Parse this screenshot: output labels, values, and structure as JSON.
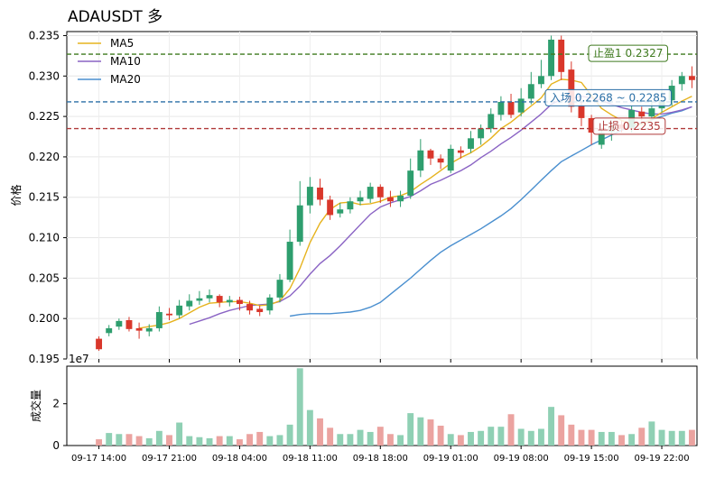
{
  "chart_data": {
    "type": "candlestick",
    "title": "ADAUSDT 多",
    "price_panel": {
      "ylabel": "价格",
      "ylim": [
        0.195,
        0.2355
      ],
      "yticks": [
        "0.195",
        "0.200",
        "0.205",
        "0.210",
        "0.215",
        "0.220",
        "0.225",
        "0.230",
        "0.235"
      ],
      "grid": true
    },
    "volume_panel": {
      "ylabel": "成交量",
      "offset_label": "1e7",
      "ylim": [
        0,
        3.8
      ],
      "yticks": [
        "0",
        "2"
      ]
    },
    "xticks": [
      "09-17 14:00",
      "09-17 21:00",
      "09-18 04:00",
      "09-18 11:00",
      "09-18 18:00",
      "09-19 01:00",
      "09-19 08:00",
      "09-19 15:00",
      "09-19 22:00"
    ],
    "xtick_index": [
      0,
      7,
      14,
      21,
      28,
      35,
      42,
      49,
      56
    ],
    "legend": {
      "placement": "top-left",
      "entries": [
        "MA5",
        "MA10",
        "MA20"
      ]
    },
    "colors": {
      "up": "#2e9e6e",
      "down": "#d9372b",
      "ma5": "#e6b31e",
      "ma10": "#8a63c4",
      "ma20": "#4a8fcf"
    },
    "levels": [
      {
        "name": "take_profit",
        "label": "止盈1 0.2327",
        "value": 0.2327,
        "color": "#3f7a1f"
      },
      {
        "name": "entry_high",
        "label": "入场 0.2268 ~ 0.2285",
        "value": 0.2268,
        "color": "#2a6fa6"
      },
      {
        "name": "stop_loss",
        "label": "止损 0.2235",
        "value": 0.2235,
        "color": "#b03a3a"
      }
    ],
    "candles": [
      [
        0.1975,
        0.1962,
        0.1978,
        0.196
      ],
      [
        0.1982,
        0.1988,
        0.1992,
        0.1978
      ],
      [
        0.199,
        0.1997,
        0.2,
        0.1986
      ],
      [
        0.1998,
        0.1987,
        0.2002,
        0.1984
      ],
      [
        0.1988,
        0.1985,
        0.1995,
        0.1975
      ],
      [
        0.1984,
        0.1988,
        0.1993,
        0.1978
      ],
      [
        0.1988,
        0.2008,
        0.2015,
        0.1984
      ],
      [
        0.2006,
        0.2004,
        0.2013,
        0.1998
      ],
      [
        0.2004,
        0.2016,
        0.2023,
        0.2
      ],
      [
        0.2015,
        0.2022,
        0.203,
        0.201
      ],
      [
        0.2022,
        0.2025,
        0.2034,
        0.2017
      ],
      [
        0.2025,
        0.2029,
        0.2036,
        0.202
      ],
      [
        0.2028,
        0.202,
        0.203,
        0.2014
      ],
      [
        0.202,
        0.2023,
        0.2028,
        0.2015
      ],
      [
        0.2023,
        0.2018,
        0.2027,
        0.201
      ],
      [
        0.2018,
        0.201,
        0.2022,
        0.2005
      ],
      [
        0.2012,
        0.2008,
        0.2016,
        0.2003
      ],
      [
        0.201,
        0.2026,
        0.203,
        0.2005
      ],
      [
        0.2026,
        0.2048,
        0.2055,
        0.202
      ],
      [
        0.2048,
        0.2095,
        0.211,
        0.2045
      ],
      [
        0.2095,
        0.214,
        0.217,
        0.209
      ],
      [
        0.214,
        0.2163,
        0.2175,
        0.213
      ],
      [
        0.2162,
        0.2147,
        0.2173,
        0.214
      ],
      [
        0.2147,
        0.2128,
        0.2152,
        0.2122
      ],
      [
        0.213,
        0.2135,
        0.2143,
        0.2125
      ],
      [
        0.2135,
        0.2145,
        0.215,
        0.213
      ],
      [
        0.2145,
        0.215,
        0.2158,
        0.214
      ],
      [
        0.2148,
        0.2163,
        0.2168,
        0.2143
      ],
      [
        0.2163,
        0.215,
        0.2166,
        0.2143
      ],
      [
        0.215,
        0.2145,
        0.2158,
        0.2138
      ],
      [
        0.2145,
        0.2152,
        0.2158,
        0.2138
      ],
      [
        0.2152,
        0.2183,
        0.2198,
        0.2148
      ],
      [
        0.2183,
        0.2208,
        0.2222,
        0.2175
      ],
      [
        0.2208,
        0.2198,
        0.221,
        0.219
      ],
      [
        0.2198,
        0.2193,
        0.2203,
        0.2185
      ],
      [
        0.2183,
        0.221,
        0.2215,
        0.218
      ],
      [
        0.2208,
        0.2205,
        0.2213,
        0.2198
      ],
      [
        0.221,
        0.2223,
        0.2232,
        0.2205
      ],
      [
        0.2223,
        0.2235,
        0.224,
        0.2215
      ],
      [
        0.2235,
        0.2253,
        0.226,
        0.223
      ],
      [
        0.2252,
        0.2268,
        0.2275,
        0.2245
      ],
      [
        0.2268,
        0.2252,
        0.2278,
        0.2248
      ],
      [
        0.2255,
        0.2272,
        0.2285,
        0.225
      ],
      [
        0.2272,
        0.229,
        0.2305,
        0.2265
      ],
      [
        0.229,
        0.23,
        0.232,
        0.2285
      ],
      [
        0.23,
        0.2345,
        0.235,
        0.2295
      ],
      [
        0.2345,
        0.2305,
        0.235,
        0.2295
      ],
      [
        0.2308,
        0.2262,
        0.2318,
        0.2255
      ],
      [
        0.2263,
        0.2248,
        0.2268,
        0.2238
      ],
      [
        0.2248,
        0.223,
        0.2252,
        0.2215
      ],
      [
        0.2215,
        0.223,
        0.2235,
        0.221
      ],
      [
        0.2231,
        0.2238,
        0.2245,
        0.222
      ],
      [
        0.224,
        0.2235,
        0.2245,
        0.223
      ],
      [
        0.2236,
        0.2258,
        0.2263,
        0.223
      ],
      [
        0.2256,
        0.225,
        0.2262,
        0.2245
      ],
      [
        0.225,
        0.226,
        0.227,
        0.2245
      ],
      [
        0.226,
        0.227,
        0.2283,
        0.2255
      ],
      [
        0.227,
        0.2288,
        0.2295,
        0.2263
      ],
      [
        0.229,
        0.23,
        0.2305,
        0.2282
      ],
      [
        0.23,
        0.2295,
        0.2312,
        0.2285
      ]
    ],
    "ma5": [
      null,
      null,
      null,
      null,
      0.1988,
      0.199,
      0.1992,
      0.1995,
      0.2,
      0.2007,
      0.2014,
      0.2019,
      0.202,
      0.2021,
      0.2021,
      0.2019,
      0.2016,
      0.2017,
      0.2022,
      0.2037,
      0.2062,
      0.2094,
      0.2118,
      0.2135,
      0.2143,
      0.2144,
      0.2141,
      0.2142,
      0.2145,
      0.215,
      0.2152,
      0.2157,
      0.2166,
      0.2174,
      0.2183,
      0.2192,
      0.2199,
      0.2205,
      0.2213,
      0.2223,
      0.2235,
      0.2243,
      0.2253,
      0.2263,
      0.2273,
      0.229,
      0.2296,
      0.2295,
      0.2292,
      0.2276,
      0.226,
      0.2252,
      0.2245,
      0.2241,
      0.224,
      0.2247,
      0.2255,
      0.2262,
      0.2269,
      0.2275
    ],
    "ma10": [
      null,
      null,
      null,
      null,
      null,
      null,
      null,
      null,
      null,
      0.1993,
      0.1997,
      0.2001,
      0.2006,
      0.201,
      0.2013,
      0.2016,
      0.2017,
      0.2018,
      0.2021,
      0.2028,
      0.204,
      0.2055,
      0.2068,
      0.2078,
      0.209,
      0.2103,
      0.2116,
      0.2129,
      0.2138,
      0.2143,
      0.2147,
      0.2151,
      0.2158,
      0.2166,
      0.2171,
      0.2177,
      0.2183,
      0.219,
      0.2199,
      0.2207,
      0.2216,
      0.2224,
      0.2233,
      0.2243,
      0.2253,
      0.2265,
      0.2271,
      0.2272,
      0.2275,
      0.2273,
      0.227,
      0.2265,
      0.2261,
      0.2258,
      0.2255,
      0.2253,
      0.2253,
      0.2255,
      0.2258,
      0.2262
    ],
    "ma20": [
      null,
      null,
      null,
      null,
      null,
      null,
      null,
      null,
      null,
      null,
      null,
      null,
      null,
      null,
      null,
      null,
      null,
      null,
      null,
      0.2003,
      0.2005,
      0.2006,
      0.2006,
      0.2006,
      0.2007,
      0.2008,
      0.201,
      0.2014,
      0.202,
      0.203,
      0.204,
      0.205,
      0.2061,
      0.2072,
      0.2082,
      0.209,
      0.2097,
      0.2104,
      0.2111,
      0.2119,
      0.2127,
      0.2136,
      0.2147,
      0.2159,
      0.2171,
      0.2183,
      0.2194,
      0.2201,
      0.2208,
      0.2215,
      0.2221,
      0.2227,
      0.2233,
      0.2238,
      0.2242,
      0.2246,
      0.225,
      0.2254,
      0.2257,
      0.2262
    ],
    "volumes": [
      0.3,
      0.6,
      0.55,
      0.55,
      0.45,
      0.35,
      0.7,
      0.5,
      1.1,
      0.45,
      0.4,
      0.35,
      0.45,
      0.45,
      0.3,
      0.55,
      0.65,
      0.45,
      0.5,
      1.0,
      3.7,
      1.7,
      1.3,
      0.85,
      0.55,
      0.55,
      0.75,
      0.65,
      0.9,
      0.55,
      0.5,
      1.55,
      1.35,
      1.25,
      0.95,
      0.55,
      0.5,
      0.65,
      0.7,
      0.9,
      0.9,
      1.5,
      0.8,
      0.7,
      0.8,
      1.85,
      1.45,
      1.0,
      0.75,
      0.75,
      0.65,
      0.65,
      0.5,
      0.55,
      0.85,
      1.15,
      0.75,
      0.7,
      0.7,
      0.75
    ]
  }
}
